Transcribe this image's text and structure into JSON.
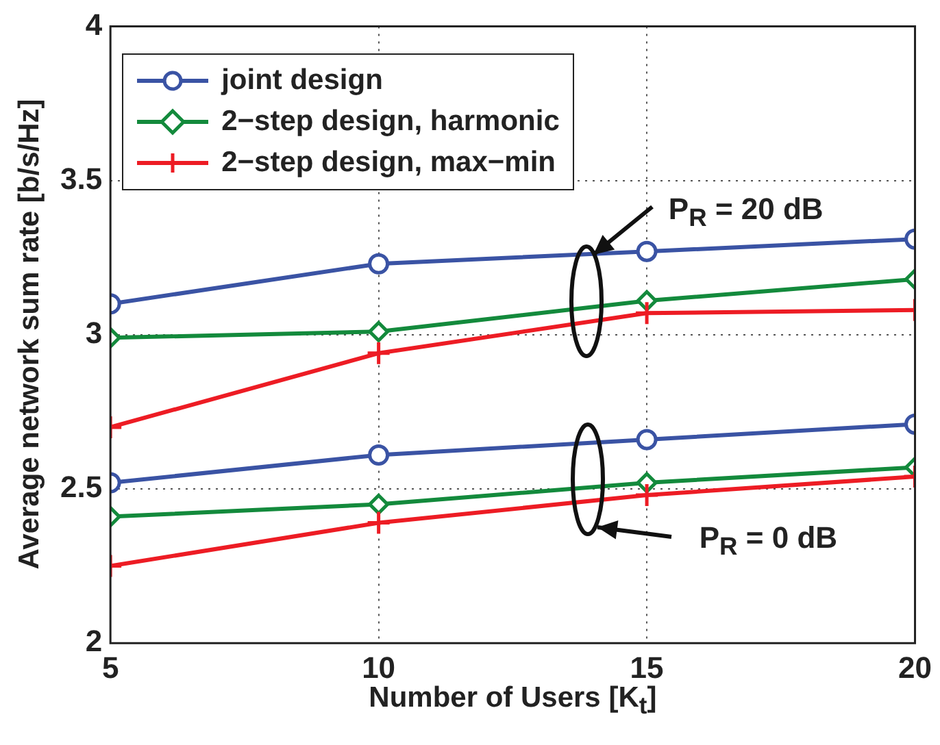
{
  "chart_data": {
    "type": "line",
    "xlabel": "Number of Users [K$_{t}$]",
    "ylabel": "Average network sum rate [b/s/Hz]",
    "x": [
      5,
      10,
      15,
      20
    ],
    "xlim": [
      5,
      20
    ],
    "xticks": [
      5,
      10,
      15,
      20
    ],
    "ylim": [
      2,
      4
    ],
    "yticks": [
      2,
      2.5,
      3,
      3.5,
      4
    ],
    "grid": true,
    "legend": "top left",
    "line_style": "solid",
    "series": [
      {
        "name": "joint design",
        "color": "#3a53a4",
        "marker": "circle",
        "values": [
          3.1,
          3.23,
          3.27,
          3.31
        ]
      },
      {
        "name": "2−step design, harmonic",
        "color": "#138a3c",
        "marker": "diamond",
        "values": [
          2.99,
          3.01,
          3.11,
          3.18
        ]
      },
      {
        "name": "2−step design, max−min",
        "color": "#ed1c24",
        "marker": "cross",
        "values": [
          2.7,
          2.94,
          3.07,
          3.08
        ]
      },
      {
        "color": "#3a53a4",
        "marker": "circle",
        "values": [
          2.52,
          2.61,
          2.66,
          2.71
        ]
      },
      {
        "color": "#138a3c",
        "marker": "diamond",
        "values": [
          2.41,
          2.45,
          2.52,
          2.57
        ]
      },
      {
        "color": "#ed1c24",
        "marker": "cross",
        "values": [
          2.25,
          2.39,
          2.48,
          2.54
        ]
      }
    ],
    "annotations": [
      {
        "text": "P$_{R}$ = 20 dB",
        "x": 14,
        "y": 3.26
      },
      "P$_{R}$ = 0 dB"
    ]
  }
}
